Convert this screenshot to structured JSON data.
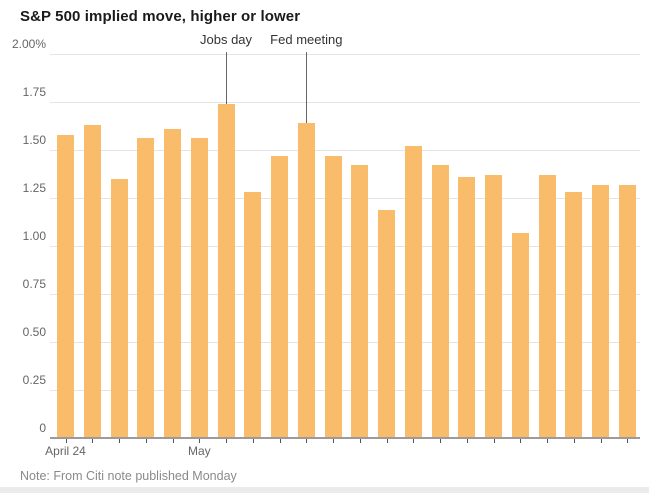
{
  "page": {
    "title": "S&P 500 implied move, higher or lower",
    "note": "Note: From Citi note published Monday"
  },
  "chart_data": {
    "type": "bar",
    "title": "S&P 500 implied move, higher or lower",
    "unit": "percent",
    "values": [
      1.58,
      1.63,
      1.35,
      1.56,
      1.61,
      1.56,
      1.74,
      1.28,
      1.47,
      1.64,
      1.47,
      1.42,
      1.19,
      1.52,
      1.42,
      1.36,
      1.37,
      1.07,
      1.37,
      1.28,
      1.32,
      1.32
    ],
    "ylim": [
      0,
      2.0
    ],
    "grid": true,
    "y_ticks": [
      {
        "value": 0,
        "label": "0"
      },
      {
        "value": 0.25,
        "label": "0.25"
      },
      {
        "value": 0.5,
        "label": "0.50"
      },
      {
        "value": 0.75,
        "label": "0.75"
      },
      {
        "value": 1.0,
        "label": "1.00"
      },
      {
        "value": 1.25,
        "label": "1.25"
      },
      {
        "value": 1.5,
        "label": "1.50"
      },
      {
        "value": 1.75,
        "label": "1.75"
      },
      {
        "value": 2.0,
        "label": "2.00%"
      }
    ],
    "x_tick_labels": [
      {
        "bar_index": 0,
        "label": "April 24"
      },
      {
        "bar_index": 5,
        "label": "May"
      }
    ],
    "annotations": [
      {
        "bar_index": 6,
        "label": "Jobs day"
      },
      {
        "bar_index": 9,
        "label": "Fed meeting"
      }
    ],
    "colors": {
      "bar": "#f9bc6b",
      "gridline": "#e4e4e4",
      "axis_line": "#9b9b9b",
      "tick": "#555555",
      "axis_label": "#666666",
      "annotation_text": "#333333",
      "annotation_line": "#666666",
      "title_text": "#1a1a1a",
      "note_text": "#8a8a8a"
    }
  }
}
